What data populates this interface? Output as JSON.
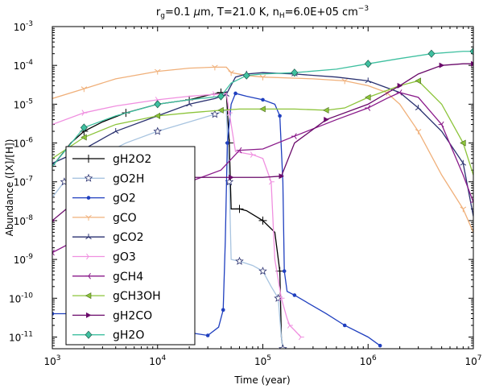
{
  "chart_data": {
    "type": "line",
    "title": {
      "pre": "r",
      "sub1": "g",
      "mid1": "=0.1 ",
      "mu": "μ",
      "mid2": "m, T=21.0 K, n",
      "sub2": "H",
      "mid3": "=6.0E+05 cm",
      "sup": "−3"
    },
    "xlabel": "Time (year)",
    "ylabel": "Abundance ([X]/[H])",
    "xscale": "log",
    "yscale": "log",
    "xlim": [
      1000,
      10000000
    ],
    "ylim": [
      5e-12,
      0.001
    ],
    "x_ticks": [
      {
        "value": 1000,
        "base": "10",
        "exp": "3"
      },
      {
        "value": 10000,
        "base": "10",
        "exp": "4"
      },
      {
        "value": 100000,
        "base": "10",
        "exp": "5"
      },
      {
        "value": 1000000,
        "base": "10",
        "exp": "6"
      },
      {
        "value": 10000000,
        "base": "10",
        "exp": "7"
      }
    ],
    "y_ticks": [
      {
        "value": 1e-11,
        "base": "10",
        "exp": "-11"
      },
      {
        "value": 1e-10,
        "base": "10",
        "exp": "-10"
      },
      {
        "value": 1e-09,
        "base": "10",
        "exp": "-9"
      },
      {
        "value": 1e-08,
        "base": "10",
        "exp": "-8"
      },
      {
        "value": 1e-07,
        "base": "10",
        "exp": "-7"
      },
      {
        "value": 1e-06,
        "base": "10",
        "exp": "-6"
      },
      {
        "value": 1e-05,
        "base": "10",
        "exp": "-5"
      },
      {
        "value": 0.0001,
        "base": "10",
        "exp": "-4"
      },
      {
        "value": 0.001,
        "base": "10",
        "exp": "-3"
      }
    ],
    "legend_position": "lower-left",
    "series": [
      {
        "name": "gH2O2",
        "color": "#000000",
        "marker": "plus",
        "points": [
          [
            1000,
            2.5e-07
          ],
          [
            1500,
            1e-06
          ],
          [
            2000,
            2e-06
          ],
          [
            3000,
            3.5e-06
          ],
          [
            5000,
            6e-06
          ],
          [
            10000,
            1e-05
          ],
          [
            20000,
            1.3e-05
          ],
          [
            30000,
            1.7e-05
          ],
          [
            40000,
            2e-05
          ],
          [
            45000,
            2e-05
          ],
          [
            48000,
            1e-06
          ],
          [
            50000,
            2e-08
          ],
          [
            60000,
            2e-08
          ],
          [
            70000,
            1.8e-08
          ],
          [
            100000,
            1e-08
          ],
          [
            130000,
            5e-09
          ],
          [
            145000,
            5e-10
          ],
          [
            150000,
            1e-11
          ],
          [
            155000,
            5e-12
          ]
        ]
      },
      {
        "name": "gO2H",
        "color": "#a8c4e0",
        "marker": "star",
        "points": [
          [
            1000,
            4e-08
          ],
          [
            1300,
            1e-07
          ],
          [
            2000,
            2.5e-07
          ],
          [
            3000,
            5e-07
          ],
          [
            5000,
            1e-06
          ],
          [
            10000,
            2e-06
          ],
          [
            20000,
            3.5e-06
          ],
          [
            35000,
            5.5e-06
          ],
          [
            45000,
            7e-06
          ],
          [
            48000,
            1e-07
          ],
          [
            50000,
            1e-09
          ],
          [
            60000,
            9e-10
          ],
          [
            80000,
            7e-10
          ],
          [
            100000,
            5e-10
          ],
          [
            120000,
            2e-10
          ],
          [
            140000,
            1e-10
          ],
          [
            150000,
            1e-11
          ],
          [
            155000,
            5e-12
          ]
        ]
      },
      {
        "name": "gO2",
        "color": "#1f3fbf",
        "marker": "dot",
        "points": [
          [
            1000,
            4e-11
          ],
          [
            2000,
            4e-11
          ],
          [
            3000,
            3.5e-11
          ],
          [
            5000,
            2.8e-11
          ],
          [
            10000,
            2e-11
          ],
          [
            20000,
            1.3e-11
          ],
          [
            30000,
            1.1e-11
          ],
          [
            38000,
            1.8e-11
          ],
          [
            42000,
            5e-11
          ],
          [
            44000,
            3e-09
          ],
          [
            46000,
            1e-06
          ],
          [
            50000,
            1e-05
          ],
          [
            55000,
            1.9e-05
          ],
          [
            70000,
            1.6e-05
          ],
          [
            100000,
            1.3e-05
          ],
          [
            130000,
            1e-05
          ],
          [
            145000,
            5e-06
          ],
          [
            155000,
            1e-07
          ],
          [
            160000,
            5e-10
          ],
          [
            170000,
            1.5e-10
          ],
          [
            200000,
            1.2e-10
          ],
          [
            400000,
            4e-11
          ],
          [
            600000,
            2e-11
          ],
          [
            1000000,
            1e-11
          ],
          [
            1300000,
            6e-12
          ]
        ]
      },
      {
        "name": "gCO",
        "color": "#f0b07a",
        "marker": "tri_down",
        "points": [
          [
            1000,
            1.4e-05
          ],
          [
            2000,
            2.5e-05
          ],
          [
            4000,
            4.5e-05
          ],
          [
            10000,
            7e-05
          ],
          [
            20000,
            8.5e-05
          ],
          [
            35000,
            9e-05
          ],
          [
            45000,
            9e-05
          ],
          [
            50000,
            6.5e-05
          ],
          [
            70000,
            5.5e-05
          ],
          [
            100000,
            5e-05
          ],
          [
            300000,
            4.5e-05
          ],
          [
            600000,
            4e-05
          ],
          [
            1000000,
            3e-05
          ],
          [
            1500000,
            2e-05
          ],
          [
            2000000,
            1e-05
          ],
          [
            3000000,
            2e-06
          ],
          [
            5000000,
            1.5e-07
          ],
          [
            8000000,
            2e-08
          ],
          [
            10000000,
            5e-09
          ]
        ]
      },
      {
        "name": "gCO2",
        "color": "#2a3170",
        "marker": "tri_up",
        "points": [
          [
            1000,
            3e-07
          ],
          [
            2000,
            7e-07
          ],
          [
            4000,
            2e-06
          ],
          [
            10000,
            5e-06
          ],
          [
            20000,
            1e-05
          ],
          [
            35000,
            1.4e-05
          ],
          [
            45000,
            1.8e-05
          ],
          [
            55000,
            5e-05
          ],
          [
            70000,
            6e-05
          ],
          [
            100000,
            6.5e-05
          ],
          [
            200000,
            6e-05
          ],
          [
            500000,
            5e-05
          ],
          [
            1000000,
            4e-05
          ],
          [
            2000000,
            2e-05
          ],
          [
            3000000,
            8e-06
          ],
          [
            5000000,
            2e-06
          ],
          [
            8000000,
            3e-07
          ],
          [
            10000000,
            1.3e-08
          ]
        ]
      },
      {
        "name": "gO3",
        "color": "#f090e0",
        "marker": "tri_right",
        "points": [
          [
            1000,
            3e-06
          ],
          [
            2000,
            6e-06
          ],
          [
            4000,
            9e-06
          ],
          [
            10000,
            1.3e-05
          ],
          [
            20000,
            1.6e-05
          ],
          [
            35000,
            1.8e-05
          ],
          [
            45000,
            1.9e-05
          ],
          [
            48000,
            6e-06
          ],
          [
            55000,
            6e-07
          ],
          [
            80000,
            5e-07
          ],
          [
            100000,
            4e-07
          ],
          [
            120000,
            1e-07
          ],
          [
            130000,
            1e-09
          ],
          [
            150000,
            1e-10
          ],
          [
            170000,
            3e-11
          ],
          [
            180000,
            2e-11
          ],
          [
            200000,
            1.5e-11
          ],
          [
            230000,
            1e-11
          ]
        ]
      },
      {
        "name": "gCH4",
        "color": "#8a1a8a",
        "marker": "tri_left",
        "points": [
          [
            1000,
            1.5e-09
          ],
          [
            2000,
            4e-09
          ],
          [
            4000,
            1.2e-08
          ],
          [
            10000,
            4e-08
          ],
          [
            20000,
            1e-07
          ],
          [
            40000,
            2e-07
          ],
          [
            60000,
            6.5e-07
          ],
          [
            100000,
            7e-07
          ],
          [
            200000,
            1.5e-06
          ],
          [
            500000,
            4e-06
          ],
          [
            1000000,
            8e-06
          ],
          [
            1500000,
            1.4e-05
          ],
          [
            2000000,
            2e-05
          ],
          [
            3000000,
            1.5e-05
          ],
          [
            5000000,
            3e-06
          ],
          [
            8000000,
            1.5e-07
          ],
          [
            10000000,
            3e-08
          ]
        ]
      },
      {
        "name": "gCH3OH",
        "color": "#8cc43a",
        "marker": "tri_left",
        "points": [
          [
            1000,
            4e-07
          ],
          [
            2000,
            1.4e-06
          ],
          [
            4000,
            3e-06
          ],
          [
            10000,
            5e-06
          ],
          [
            20000,
            6e-06
          ],
          [
            40000,
            7e-06
          ],
          [
            60000,
            7.5e-06
          ],
          [
            100000,
            7.5e-06
          ],
          [
            200000,
            7.5e-06
          ],
          [
            400000,
            7e-06
          ],
          [
            600000,
            8e-06
          ],
          [
            1000000,
            1.5e-05
          ],
          [
            2000000,
            3e-05
          ],
          [
            3000000,
            4e-05
          ],
          [
            5000000,
            1e-05
          ],
          [
            8000000,
            1e-06
          ],
          [
            10000000,
            1.5e-07
          ]
        ]
      },
      {
        "name": "gH2CO",
        "color": "#6a0a6a",
        "marker": "tri_right",
        "points": [
          [
            1000,
            1e-08
          ],
          [
            1500,
            2.5e-08
          ],
          [
            2000,
            4e-08
          ],
          [
            4000,
            8e-08
          ],
          [
            10000,
            1.1e-07
          ],
          [
            20000,
            1.3e-07
          ],
          [
            50000,
            1.3e-07
          ],
          [
            100000,
            1.3e-07
          ],
          [
            150000,
            1.4e-07
          ],
          [
            200000,
            1e-06
          ],
          [
            400000,
            4e-06
          ],
          [
            1000000,
            1e-05
          ],
          [
            2000000,
            3e-05
          ],
          [
            3000000,
            6e-05
          ],
          [
            5000000,
            0.0001
          ],
          [
            8000000,
            0.00011
          ],
          [
            10000000,
            0.00011
          ]
        ]
      },
      {
        "name": "gH2O",
        "color": "#3fc0a0",
        "marker": "diamond",
        "points": [
          [
            1000,
            2.5e-07
          ],
          [
            2000,
            2.5e-06
          ],
          [
            4000,
            5e-06
          ],
          [
            10000,
            1e-05
          ],
          [
            20000,
            1.3e-05
          ],
          [
            40000,
            1.6e-05
          ],
          [
            50000,
            3.5e-05
          ],
          [
            70000,
            5.5e-05
          ],
          [
            100000,
            6e-05
          ],
          [
            200000,
            6.5e-05
          ],
          [
            500000,
            8e-05
          ],
          [
            1000000,
            0.00011
          ],
          [
            2000000,
            0.00015
          ],
          [
            4000000,
            0.0002
          ],
          [
            8000000,
            0.00023
          ],
          [
            10000000,
            0.00023
          ]
        ]
      }
    ]
  }
}
